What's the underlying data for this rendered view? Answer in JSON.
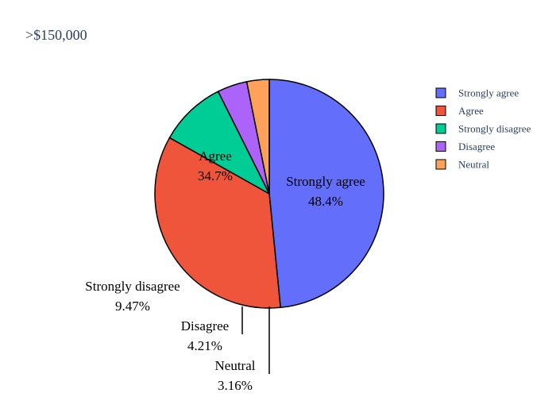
{
  "chart_data": {
    "type": "pie",
    "title": ">$150,000",
    "legend_position": "top-right",
    "slices": [
      {
        "label": "Strongly agree",
        "value": 48.4,
        "percent_text": "48.4%",
        "color": "#636efa"
      },
      {
        "label": "Agree",
        "value": 34.7,
        "percent_text": "34.7%",
        "color": "#ef553b"
      },
      {
        "label": "Strongly disagree",
        "value": 9.47,
        "percent_text": "9.47%",
        "color": "#00cc96"
      },
      {
        "label": "Disagree",
        "value": 4.21,
        "percent_text": "4.21%",
        "color": "#ab63fa"
      },
      {
        "label": "Neutral",
        "value": 3.16,
        "percent_text": "3.16%",
        "color": "#ffa15a"
      }
    ],
    "legend": [
      "Strongly agree",
      "Agree",
      "Strongly disagree",
      "Disagree",
      "Neutral"
    ]
  }
}
